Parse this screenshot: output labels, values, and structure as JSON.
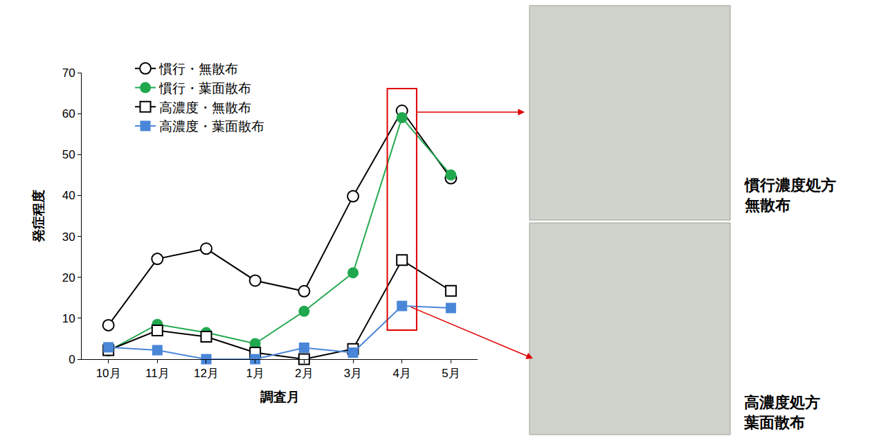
{
  "chart_data": {
    "type": "line",
    "categories": [
      "10月",
      "11月",
      "12月",
      "1月",
      "2月",
      "3月",
      "4月",
      "5月"
    ],
    "series": [
      {
        "name": "慣行・無散布",
        "color": "#000000",
        "marker": "open circle",
        "values": [
          8.3,
          24.5,
          27.0,
          19.2,
          16.6,
          39.8,
          60.7,
          44.2
        ]
      },
      {
        "name": "慣行・葉面散布",
        "color": "#21a84f",
        "marker": "filled circle",
        "values": [
          2.0,
          8.5,
          6.5,
          3.8,
          11.7,
          21.1,
          59.0,
          45.0
        ]
      },
      {
        "name": "高濃度・無散布",
        "color": "#000000",
        "marker": "open square",
        "values": [
          2.2,
          7.0,
          5.5,
          1.6,
          0.0,
          2.5,
          24.2,
          16.7
        ]
      },
      {
        "name": "高濃度・葉面散布",
        "color": "#4a86d8",
        "marker": "filled square",
        "values": [
          2.9,
          2.2,
          0.0,
          0.0,
          2.8,
          1.6,
          13.0,
          12.5
        ]
      }
    ],
    "x_label": "調査月",
    "y_label": "発症程度",
    "ylim": [
      0,
      70
    ],
    "yticks": [
      0,
      10,
      20,
      30,
      40,
      50,
      60,
      70
    ],
    "grid": false,
    "legend": "upper left",
    "annotations": [
      {
        "category": "4月",
        "text": "慣行濃度処方\n無散布"
      },
      {
        "category": "4月",
        "text": "高濃度処方\n葉面散布"
      }
    ]
  }
}
